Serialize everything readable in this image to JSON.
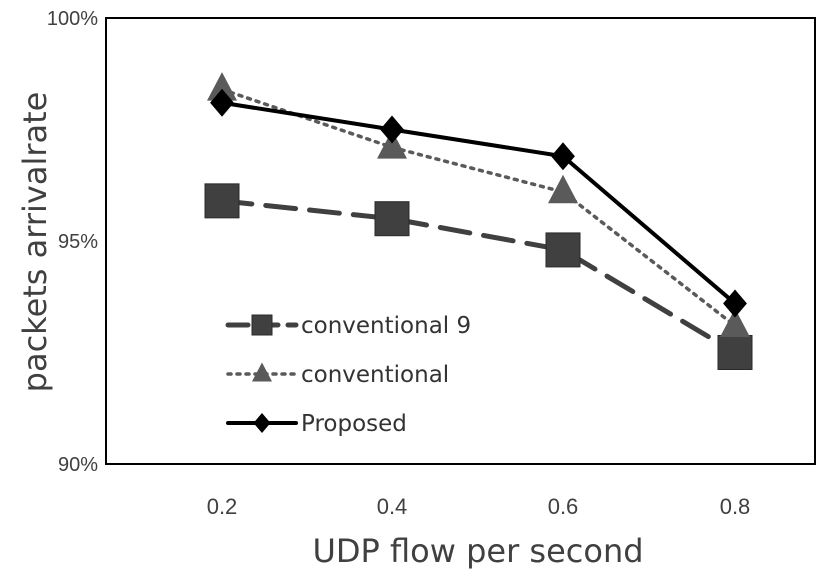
{
  "chart_data": {
    "type": "line",
    "title": "",
    "xlabel": "UDP flow per second",
    "ylabel": "packets arrivalrate",
    "x": [
      0.2,
      0.4,
      0.6,
      0.8
    ],
    "x_tick_labels": [
      "0.2",
      "0.4",
      "0.6",
      "0.8"
    ],
    "y_tick_labels": [
      "90%",
      "95%",
      "100%"
    ],
    "y_ticks": [
      90,
      95,
      100
    ],
    "ylim": [
      90,
      100
    ],
    "grid": false,
    "legend_position": "bottom-left",
    "series": [
      {
        "name": "conventional 9",
        "values": [
          95.9,
          95.5,
          94.8,
          92.5
        ],
        "marker": "square",
        "line_style": "dashed",
        "color": "#404040"
      },
      {
        "name": "conventional",
        "values": [
          98.4,
          97.1,
          96.1,
          93.1
        ],
        "marker": "triangle",
        "line_style": "dotted",
        "color": "#5a5a5a"
      },
      {
        "name": "Proposed",
        "values": [
          98.1,
          97.5,
          96.9,
          93.6
        ],
        "marker": "diamond",
        "line_style": "solid",
        "color": "#000000"
      }
    ]
  }
}
